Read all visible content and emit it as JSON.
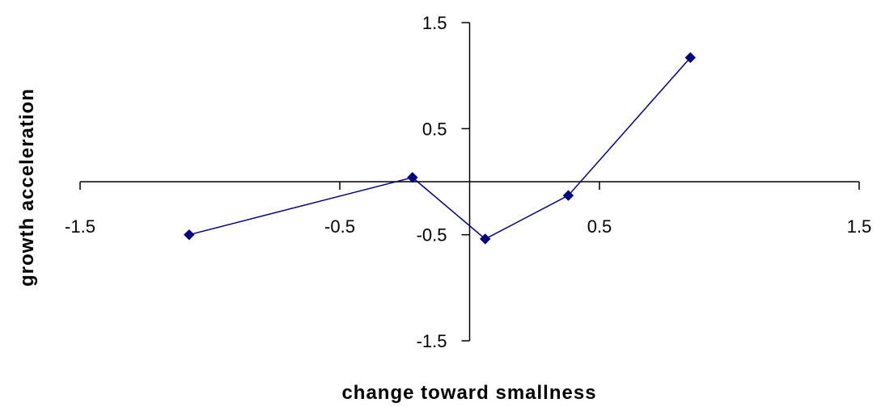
{
  "chart_data": {
    "type": "line",
    "xlabel": "change toward smallness",
    "ylabel": "growth acceleration",
    "xlim": [
      -1.5,
      1.5
    ],
    "ylim": [
      -1.5,
      1.5
    ],
    "x_ticks": [
      -1.5,
      -0.5,
      0.5,
      1.5
    ],
    "y_ticks": [
      -1.5,
      -0.5,
      0.5,
      1.5
    ],
    "x_tick_labels": [
      "-1.5",
      "-0.5",
      "0.5",
      "1.5"
    ],
    "y_tick_labels": [
      "-1.5",
      "-0.5",
      "0.5",
      "1.5"
    ],
    "grid": false,
    "legend": "none",
    "series": [
      {
        "color": "#000080",
        "marker": "diamond",
        "points": [
          {
            "x": -1.08,
            "y": -0.5
          },
          {
            "x": -0.22,
            "y": 0.04
          },
          {
            "x": 0.06,
            "y": -0.54
          },
          {
            "x": 0.38,
            "y": -0.13
          },
          {
            "x": 0.85,
            "y": 1.17
          }
        ]
      }
    ]
  }
}
